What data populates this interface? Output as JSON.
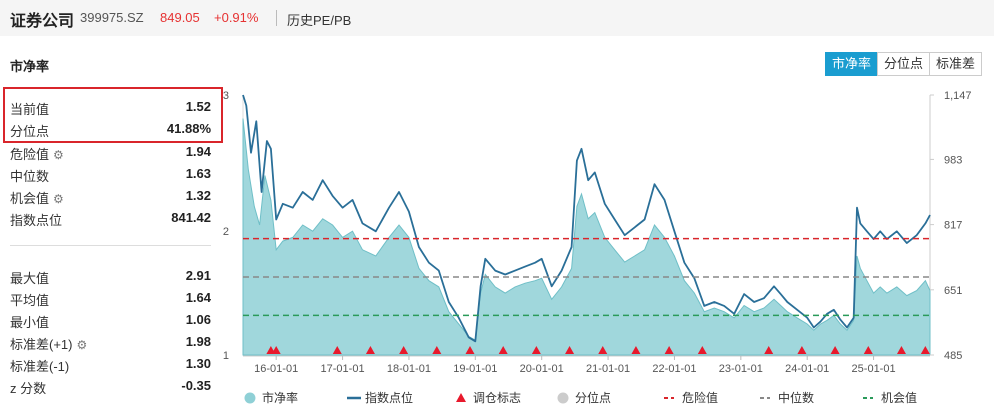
{
  "header": {
    "name": "证券公司",
    "code": "399975.SZ",
    "price": "849.05",
    "change": "+0.91%",
    "history_link": "历史PE/PB"
  },
  "section_title": "市净率",
  "tabs": [
    {
      "label": "市净率",
      "active": true
    },
    {
      "label": "分位点",
      "active": false
    },
    {
      "label": "标准差",
      "active": false
    }
  ],
  "stats_top": [
    {
      "label": "当前值",
      "value": "1.52",
      "gear": false
    },
    {
      "label": "分位点",
      "value": "41.88%",
      "gear": false
    },
    {
      "label": "危险值",
      "value": "1.94",
      "gear": true
    },
    {
      "label": "中位数",
      "value": "1.63",
      "gear": false
    },
    {
      "label": "机会值",
      "value": "1.32",
      "gear": true
    },
    {
      "label": "指数点位",
      "value": "841.42",
      "gear": false
    }
  ],
  "stats_bottom": [
    {
      "label": "最大值",
      "value": "2.91",
      "gear": false
    },
    {
      "label": "平均值",
      "value": "1.64",
      "gear": false
    },
    {
      "label": "最小值",
      "value": "1.06",
      "gear": false
    },
    {
      "label": "标准差(+1)",
      "value": "1.98",
      "gear": true
    },
    {
      "label": "标准差(-1)",
      "value": "1.30",
      "gear": false
    },
    {
      "label": "z 分数",
      "value": "-0.35",
      "gear": false
    }
  ],
  "colors": {
    "area": "#8fd0d6",
    "line": "#2a6f98",
    "danger": "#d9252b",
    "median": "#888888",
    "opportunity": "#2a9a5a",
    "marker": "#e8192c",
    "percentile_legend": "#cccccc",
    "accent": "#1a9dd0",
    "highlight": "#d9252b"
  },
  "chart_data": {
    "type": "area",
    "x_ticks": [
      "16-01-01",
      "17-01-01",
      "18-01-01",
      "19-01-01",
      "20-01-01",
      "21-01-01",
      "22-01-01",
      "23-01-01",
      "24-01-01",
      "25-01-01"
    ],
    "x_range": [
      2015.5,
      2025.85
    ],
    "left_axis": {
      "ticks": [
        "1",
        "2"
      ],
      "ticks_values": [
        1,
        2
      ],
      "range": [
        1,
        3.1
      ],
      "top_label": "3"
    },
    "right_axis": {
      "ticks": [
        "485",
        "651",
        "817",
        "983",
        "1,147"
      ],
      "ticks_values": [
        485,
        651,
        817,
        983,
        1147
      ],
      "range": [
        485,
        1147
      ]
    },
    "series": [
      {
        "name": "市净率",
        "kind": "area",
        "axis": "left",
        "points": [
          [
            2015.5,
            2.91
          ],
          [
            2015.58,
            2.5
          ],
          [
            2015.67,
            2.2
          ],
          [
            2015.75,
            2.05
          ],
          [
            2015.83,
            2.45
          ],
          [
            2015.92,
            2.25
          ],
          [
            2016.0,
            1.85
          ],
          [
            2016.1,
            1.92
          ],
          [
            2016.25,
            1.95
          ],
          [
            2016.4,
            2.05
          ],
          [
            2016.55,
            2.0
          ],
          [
            2016.7,
            2.1
          ],
          [
            2016.85,
            2.05
          ],
          [
            2017.0,
            1.95
          ],
          [
            2017.15,
            2.0
          ],
          [
            2017.3,
            1.85
          ],
          [
            2017.5,
            1.8
          ],
          [
            2017.7,
            1.95
          ],
          [
            2017.85,
            2.05
          ],
          [
            2018.0,
            1.95
          ],
          [
            2018.15,
            1.7
          ],
          [
            2018.3,
            1.6
          ],
          [
            2018.45,
            1.55
          ],
          [
            2018.6,
            1.35
          ],
          [
            2018.75,
            1.25
          ],
          [
            2018.9,
            1.15
          ],
          [
            2019.0,
            1.12
          ],
          [
            2019.08,
            1.5
          ],
          [
            2019.15,
            1.65
          ],
          [
            2019.3,
            1.55
          ],
          [
            2019.45,
            1.5
          ],
          [
            2019.6,
            1.55
          ],
          [
            2019.75,
            1.58
          ],
          [
            2019.9,
            1.6
          ],
          [
            2020.0,
            1.62
          ],
          [
            2020.15,
            1.45
          ],
          [
            2020.3,
            1.55
          ],
          [
            2020.45,
            1.7
          ],
          [
            2020.53,
            2.2
          ],
          [
            2020.6,
            2.3
          ],
          [
            2020.7,
            2.1
          ],
          [
            2020.8,
            2.15
          ],
          [
            2020.95,
            1.95
          ],
          [
            2021.1,
            1.85
          ],
          [
            2021.25,
            1.75
          ],
          [
            2021.4,
            1.8
          ],
          [
            2021.55,
            1.85
          ],
          [
            2021.7,
            2.05
          ],
          [
            2021.85,
            1.95
          ],
          [
            2022.0,
            1.8
          ],
          [
            2022.15,
            1.6
          ],
          [
            2022.3,
            1.5
          ],
          [
            2022.45,
            1.35
          ],
          [
            2022.6,
            1.38
          ],
          [
            2022.75,
            1.35
          ],
          [
            2022.9,
            1.3
          ],
          [
            2023.05,
            1.4
          ],
          [
            2023.2,
            1.35
          ],
          [
            2023.35,
            1.38
          ],
          [
            2023.5,
            1.45
          ],
          [
            2023.6,
            1.4
          ],
          [
            2023.7,
            1.35
          ],
          [
            2023.85,
            1.3
          ],
          [
            2024.0,
            1.25
          ],
          [
            2024.1,
            1.2
          ],
          [
            2024.2,
            1.25
          ],
          [
            2024.3,
            1.28
          ],
          [
            2024.4,
            1.32
          ],
          [
            2024.5,
            1.25
          ],
          [
            2024.6,
            1.2
          ],
          [
            2024.7,
            1.28
          ],
          [
            2024.75,
            1.8
          ],
          [
            2024.8,
            1.7
          ],
          [
            2024.9,
            1.6
          ],
          [
            2025.0,
            1.5
          ],
          [
            2025.1,
            1.55
          ],
          [
            2025.2,
            1.5
          ],
          [
            2025.35,
            1.55
          ],
          [
            2025.5,
            1.48
          ],
          [
            2025.65,
            1.52
          ],
          [
            2025.78,
            1.6
          ],
          [
            2025.85,
            1.52
          ]
        ]
      },
      {
        "name": "指数点位",
        "kind": "line",
        "axis": "right",
        "points": [
          [
            2015.5,
            1147
          ],
          [
            2015.55,
            1120
          ],
          [
            2015.62,
            1000
          ],
          [
            2015.7,
            1080
          ],
          [
            2015.78,
            900
          ],
          [
            2015.86,
            1030
          ],
          [
            2015.92,
            1010
          ],
          [
            2016.0,
            830
          ],
          [
            2016.1,
            870
          ],
          [
            2016.25,
            860
          ],
          [
            2016.4,
            900
          ],
          [
            2016.55,
            880
          ],
          [
            2016.7,
            930
          ],
          [
            2016.85,
            890
          ],
          [
            2017.0,
            860
          ],
          [
            2017.15,
            880
          ],
          [
            2017.3,
            820
          ],
          [
            2017.5,
            800
          ],
          [
            2017.7,
            860
          ],
          [
            2017.85,
            900
          ],
          [
            2018.0,
            850
          ],
          [
            2018.15,
            760
          ],
          [
            2018.3,
            720
          ],
          [
            2018.45,
            700
          ],
          [
            2018.6,
            620
          ],
          [
            2018.75,
            580
          ],
          [
            2018.9,
            530
          ],
          [
            2019.0,
            520
          ],
          [
            2019.08,
            660
          ],
          [
            2019.15,
            730
          ],
          [
            2019.3,
            700
          ],
          [
            2019.45,
            690
          ],
          [
            2019.6,
            700
          ],
          [
            2019.75,
            710
          ],
          [
            2019.9,
            720
          ],
          [
            2020.0,
            730
          ],
          [
            2020.15,
            660
          ],
          [
            2020.3,
            700
          ],
          [
            2020.45,
            760
          ],
          [
            2020.53,
            980
          ],
          [
            2020.6,
            1010
          ],
          [
            2020.7,
            930
          ],
          [
            2020.8,
            950
          ],
          [
            2020.95,
            870
          ],
          [
            2021.1,
            830
          ],
          [
            2021.25,
            790
          ],
          [
            2021.4,
            810
          ],
          [
            2021.55,
            830
          ],
          [
            2021.7,
            920
          ],
          [
            2021.85,
            880
          ],
          [
            2022.0,
            800
          ],
          [
            2022.15,
            720
          ],
          [
            2022.3,
            680
          ],
          [
            2022.45,
            610
          ],
          [
            2022.6,
            620
          ],
          [
            2022.75,
            610
          ],
          [
            2022.9,
            590
          ],
          [
            2023.05,
            640
          ],
          [
            2023.2,
            620
          ],
          [
            2023.35,
            630
          ],
          [
            2023.5,
            660
          ],
          [
            2023.6,
            640
          ],
          [
            2023.7,
            620
          ],
          [
            2023.85,
            600
          ],
          [
            2024.0,
            580
          ],
          [
            2024.1,
            555
          ],
          [
            2024.2,
            570
          ],
          [
            2024.3,
            590
          ],
          [
            2024.4,
            600
          ],
          [
            2024.5,
            575
          ],
          [
            2024.6,
            555
          ],
          [
            2024.7,
            580
          ],
          [
            2024.75,
            860
          ],
          [
            2024.8,
            820
          ],
          [
            2024.9,
            800
          ],
          [
            2025.0,
            780
          ],
          [
            2025.1,
            800
          ],
          [
            2025.2,
            780
          ],
          [
            2025.35,
            800
          ],
          [
            2025.5,
            770
          ],
          [
            2025.65,
            790
          ],
          [
            2025.78,
            820
          ],
          [
            2025.85,
            841.42
          ]
        ]
      }
    ],
    "reference_lines": [
      {
        "name": "危险值",
        "value": 1.94,
        "style": "dashed",
        "color": "#d9252b"
      },
      {
        "name": "中位数",
        "value": 1.63,
        "style": "dashed",
        "color": "#888888"
      },
      {
        "name": "机会值",
        "value": 1.32,
        "style": "dashed",
        "color": "#2a9a5a"
      }
    ],
    "markers": {
      "name": "调仓标志",
      "x": [
        2015.92,
        2016.0,
        2016.92,
        2017.42,
        2017.92,
        2018.42,
        2018.92,
        2019.42,
        2019.92,
        2020.42,
        2020.92,
        2021.42,
        2021.92,
        2022.42,
        2023.42,
        2023.92,
        2024.42,
        2024.92,
        2025.42,
        2025.78
      ]
    },
    "legend": [
      {
        "name": "市净率",
        "symbol": "circle"
      },
      {
        "name": "指数点位",
        "symbol": "line"
      },
      {
        "name": "调仓标志",
        "symbol": "triangle"
      },
      {
        "name": "分位点",
        "symbol": "circle-disabled"
      },
      {
        "name": "危险值",
        "symbol": "dash"
      },
      {
        "name": "中位数",
        "symbol": "dash"
      },
      {
        "name": "机会值",
        "symbol": "dash"
      }
    ]
  }
}
